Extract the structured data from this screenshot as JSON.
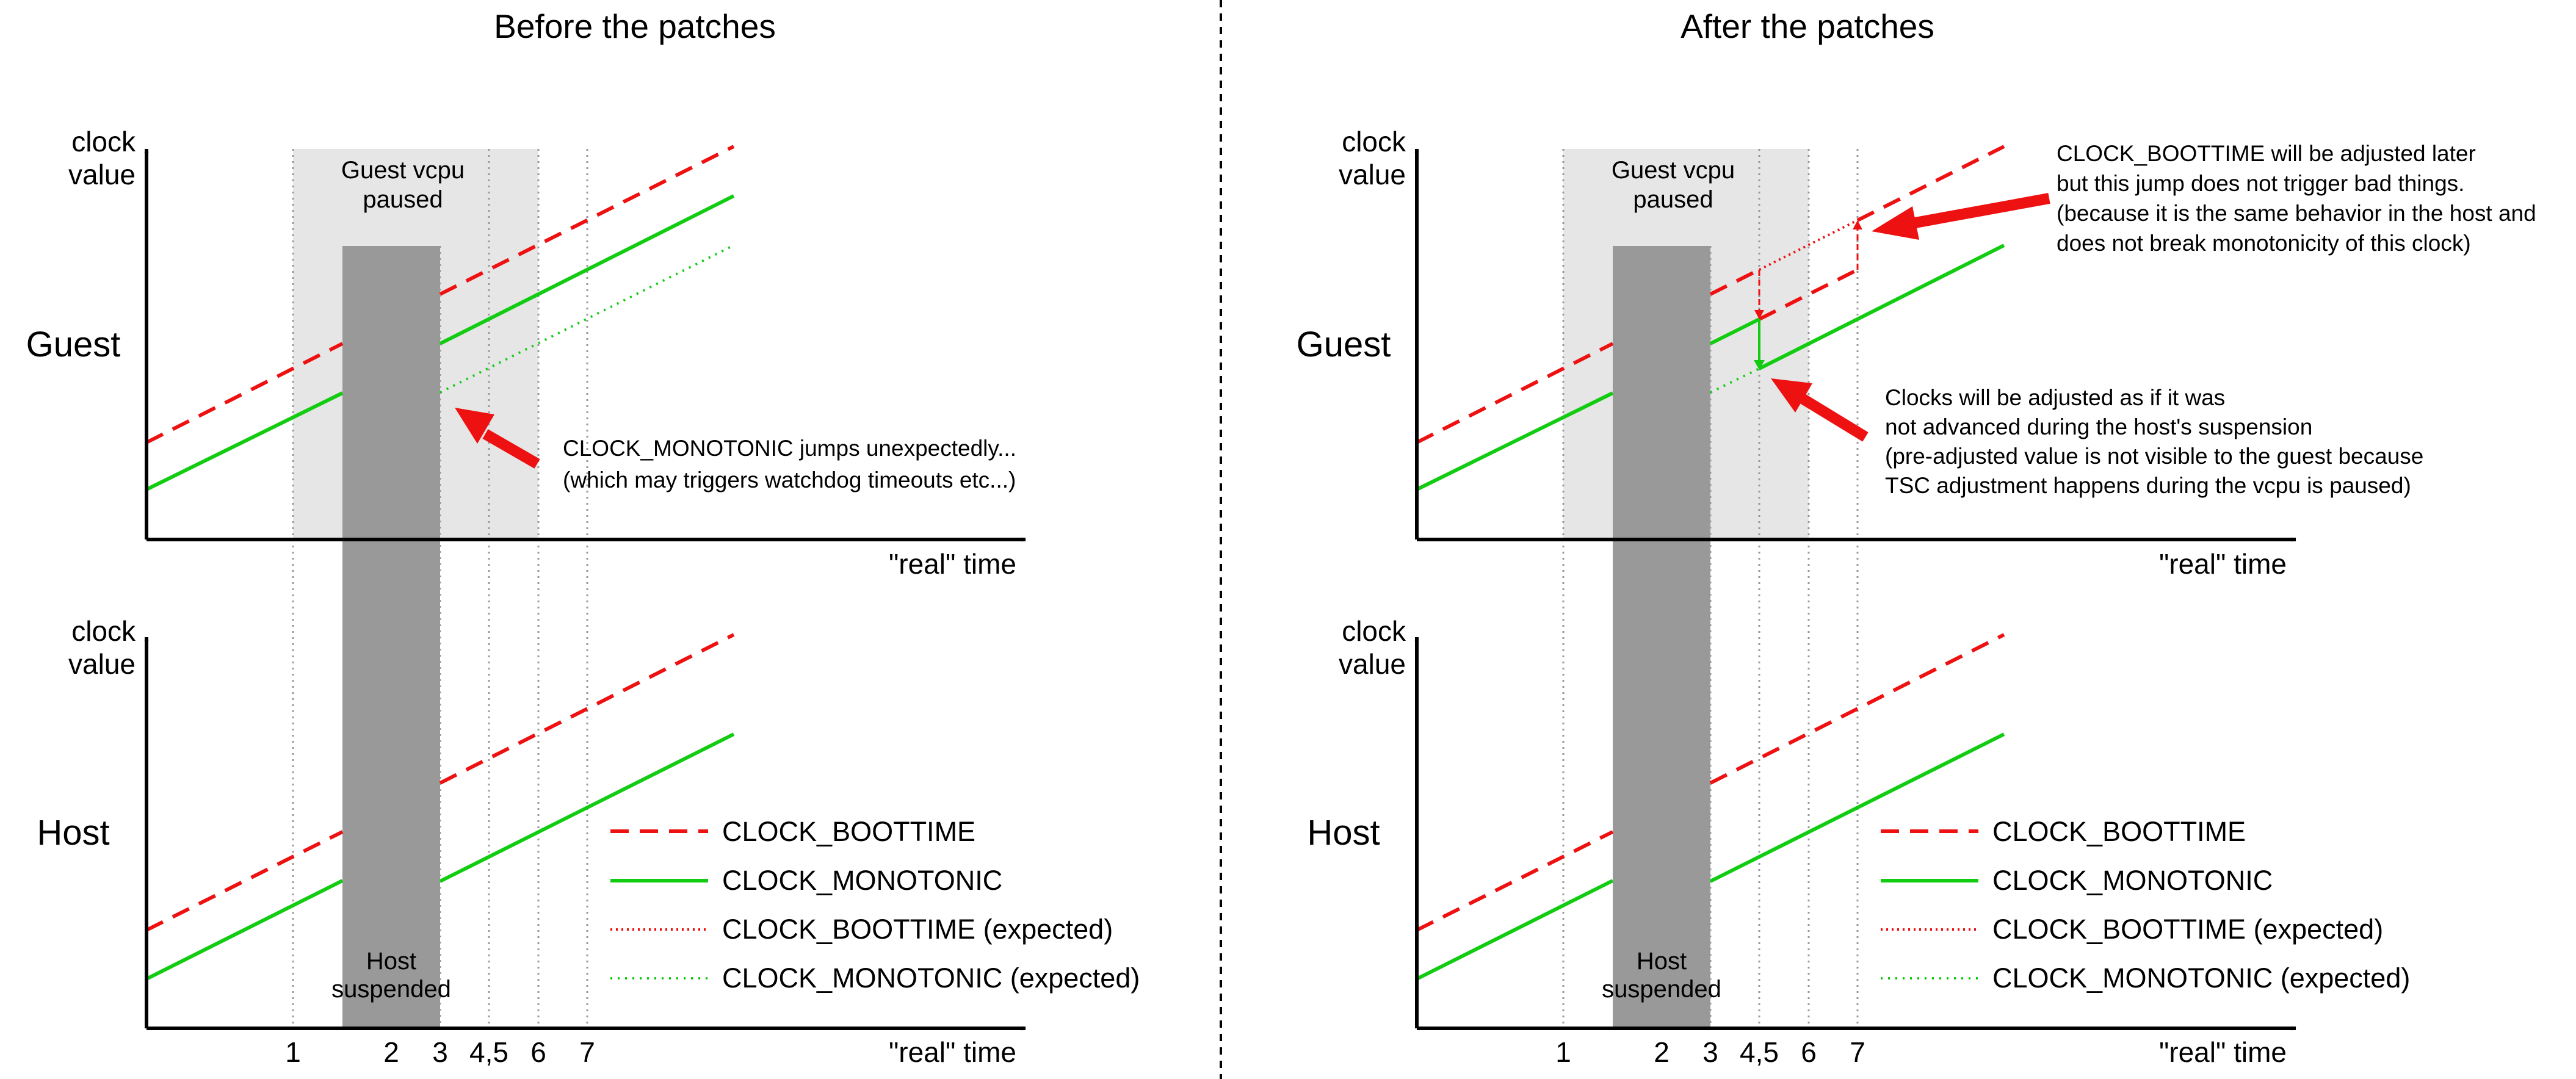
{
  "panels": [
    {
      "title": "Before the patches",
      "guest": {
        "row_label": "Guest",
        "y_axis_label": [
          "clock",
          "value"
        ],
        "x_axis_label": "\"real\" time",
        "paused_label": [
          "Guest vcpu",
          "paused"
        ],
        "annotations": [
          {
            "lines": [
              "CLOCK_MONOTONIC jumps unexpectedly...",
              "(which may triggers watchdog timeouts etc...)"
            ]
          }
        ]
      },
      "host": {
        "row_label": "Host",
        "y_axis_label": [
          "clock",
          "value"
        ],
        "x_axis_label": "\"real\" time",
        "suspended_label": [
          "Host",
          "suspended"
        ],
        "ticks": [
          "1",
          "2",
          "3",
          "4,5",
          "6",
          "7"
        ]
      }
    },
    {
      "title": "After the patches",
      "guest": {
        "row_label": "Guest",
        "y_axis_label": [
          "clock",
          "value"
        ],
        "x_axis_label": "\"real\" time",
        "paused_label": [
          "Guest vcpu",
          "paused"
        ],
        "annotations": [
          {
            "lines": [
              "CLOCK_BOOTTIME will be adjusted later",
              "but this jump does not trigger bad things.",
              "(because it is the same behavior in the host and",
              "does not break monotonicity of this clock)"
            ]
          },
          {
            "lines": [
              "Clocks will be adjusted as if it was",
              "not advanced during the host's suspension",
              "(pre-adjusted value is not visible to the guest because",
              "TSC adjustment happens during the vcpu is paused)"
            ]
          }
        ]
      },
      "host": {
        "row_label": "Host",
        "y_axis_label": [
          "clock",
          "value"
        ],
        "x_axis_label": "\"real\" time",
        "suspended_label": [
          "Host",
          "suspended"
        ],
        "ticks": [
          "1",
          "2",
          "3",
          "4,5",
          "6",
          "7"
        ]
      }
    }
  ],
  "legend": [
    {
      "label": "CLOCK_BOOTTIME",
      "style": "dashed",
      "color": "#ee1111"
    },
    {
      "label": "CLOCK_MONOTONIC",
      "style": "solid",
      "color": "#11cc11"
    },
    {
      "label": "CLOCK_BOOTTIME (expected)",
      "style": "dotted",
      "color": "#ee1111"
    },
    {
      "label": "CLOCK_MONOTONIC (expected)",
      "style": "dotted",
      "color": "#11cc11"
    }
  ],
  "colors": {
    "boottime": "#ee1111",
    "monotonic": "#11cc11",
    "arrow": "#ee1111",
    "paused_region": "#e6e6e6",
    "suspended_region": "#999999",
    "axis": "#000000"
  }
}
